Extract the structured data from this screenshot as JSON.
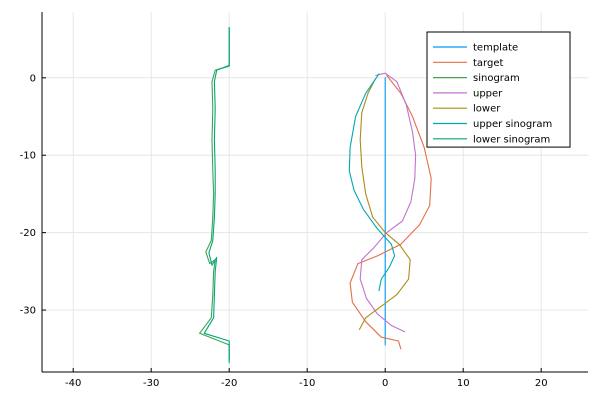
{
  "chart_data": {
    "type": "line",
    "grid": true,
    "legend_position": "top-right",
    "xlim": [
      -44,
      26
    ],
    "ylim": [
      -38,
      8.5
    ],
    "x_ticks": [
      -40,
      -30,
      -20,
      -10,
      0,
      10,
      20
    ],
    "y_ticks": [
      0,
      -10,
      -20,
      -30
    ],
    "x_tick_labels": [
      "-40",
      "-30",
      "-20",
      "-10",
      "0",
      "10",
      "20"
    ],
    "y_tick_labels": [
      "0",
      "-10",
      "-20",
      "-30"
    ],
    "series": [
      {
        "name": "template",
        "color": "#009AFA",
        "points": [
          [
            0,
            0
          ],
          [
            0,
            -34.5
          ]
        ]
      },
      {
        "name": "target",
        "color": "#E36F47",
        "points": [
          [
            0.2,
            0.3
          ],
          [
            2.0,
            -2.0
          ],
          [
            3.5,
            -5.0
          ],
          [
            5.0,
            -9.0
          ],
          [
            5.9,
            -13.0
          ],
          [
            5.7,
            -16.5
          ],
          [
            4.4,
            -19.0
          ],
          [
            2.0,
            -21.5
          ],
          [
            -1.0,
            -23.0
          ],
          [
            -3.5,
            -24.0
          ],
          [
            -4.5,
            -26.5
          ],
          [
            -4.2,
            -29.0
          ],
          [
            -2.5,
            -31.5
          ],
          [
            -0.5,
            -33.5
          ],
          [
            1.7,
            -34.0
          ],
          [
            2.0,
            -35.0
          ]
        ]
      },
      {
        "name": "sinogram",
        "color": "#3EA44E",
        "points": [
          [
            -20,
            6.5
          ],
          [
            -20,
            1.5
          ],
          [
            -21.8,
            1.0
          ],
          [
            -22.2,
            -0.5
          ],
          [
            -22.1,
            -4.0
          ],
          [
            -22.2,
            -8.0
          ],
          [
            -22.1,
            -12.0
          ],
          [
            -22.0,
            -15.0
          ],
          [
            -22.1,
            -18.0
          ],
          [
            -22.3,
            -21.0
          ],
          [
            -23.0,
            -22.5
          ],
          [
            -22.5,
            -24.0
          ],
          [
            -21.8,
            -23.5
          ],
          [
            -22.0,
            -25.0
          ],
          [
            -22.1,
            -28.0
          ],
          [
            -22.3,
            -31.0
          ],
          [
            -23.8,
            -33.0
          ],
          [
            -20.0,
            -34.5
          ],
          [
            -20.0,
            -36.5
          ]
        ]
      },
      {
        "name": "upper",
        "color": "#C271D2",
        "points": [
          [
            -1.2,
            0.3
          ],
          [
            0.0,
            0.6
          ],
          [
            1.5,
            -0.5
          ],
          [
            2.7,
            -3.5
          ],
          [
            3.5,
            -7.0
          ],
          [
            3.9,
            -10.0
          ],
          [
            3.8,
            -13.0
          ],
          [
            3.3,
            -16.0
          ],
          [
            2.2,
            -18.5
          ],
          [
            0.2,
            -20.0
          ],
          [
            -1.5,
            -22.0
          ],
          [
            -3.0,
            -23.5
          ],
          [
            -3.2,
            -26.0
          ],
          [
            -2.4,
            -28.5
          ],
          [
            -1.0,
            -30.5
          ],
          [
            0.8,
            -32.0
          ],
          [
            2.5,
            -32.8
          ]
        ]
      },
      {
        "name": "lower",
        "color": "#AC8D18",
        "points": [
          [
            -1.3,
            -0.2
          ],
          [
            -2.2,
            -2.0
          ],
          [
            -3.0,
            -4.5
          ],
          [
            -3.2,
            -8.0
          ],
          [
            -3.0,
            -11.5
          ],
          [
            -2.5,
            -15.0
          ],
          [
            -1.6,
            -18.0
          ],
          [
            0.0,
            -20.0
          ],
          [
            1.8,
            -21.5
          ],
          [
            3.2,
            -23.5
          ],
          [
            3.0,
            -26.0
          ],
          [
            1.5,
            -28.0
          ],
          [
            -0.5,
            -29.5
          ],
          [
            -2.5,
            -31.0
          ],
          [
            -3.3,
            -32.5
          ]
        ]
      },
      {
        "name": "upper sinogram",
        "color": "#00A9AD",
        "points": [
          [
            -0.8,
            0.5
          ],
          [
            -2.5,
            -2.0
          ],
          [
            -3.8,
            -5.0
          ],
          [
            -4.5,
            -9.0
          ],
          [
            -4.6,
            -12.0
          ],
          [
            -4.0,
            -14.5
          ],
          [
            -2.8,
            -17.0
          ],
          [
            -1.0,
            -19.5
          ],
          [
            0.8,
            -21.5
          ],
          [
            1.2,
            -23.0
          ],
          [
            0.5,
            -24.5
          ],
          [
            -0.5,
            -26.0
          ],
          [
            -0.8,
            -27.5
          ]
        ]
      },
      {
        "name": "lower sinogram",
        "color": "#00A676",
        "points": [
          [
            -20,
            6.5
          ],
          [
            -20,
            1.6
          ],
          [
            -21.6,
            1.0
          ],
          [
            -21.9,
            -0.5
          ],
          [
            -21.8,
            -4.0
          ],
          [
            -21.9,
            -8.0
          ],
          [
            -21.8,
            -12.0
          ],
          [
            -21.8,
            -15.0
          ],
          [
            -21.9,
            -18.0
          ],
          [
            -22.1,
            -21.0
          ],
          [
            -22.6,
            -22.6
          ],
          [
            -22.2,
            -24.2
          ],
          [
            -21.6,
            -23.2
          ],
          [
            -21.8,
            -25.0
          ],
          [
            -21.9,
            -28.0
          ],
          [
            -22.0,
            -31.0
          ],
          [
            -23.2,
            -33.0
          ],
          [
            -20.0,
            -34.0
          ],
          [
            -20.0,
            -36.8
          ]
        ]
      }
    ]
  }
}
